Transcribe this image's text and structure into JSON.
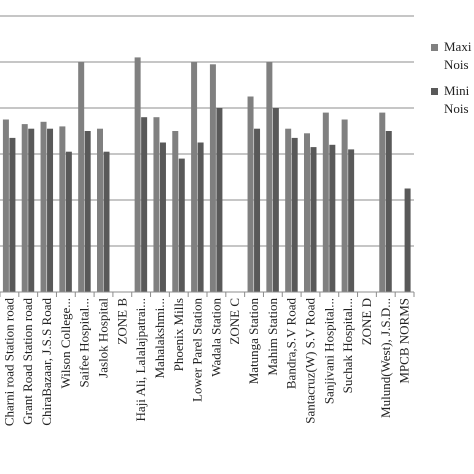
{
  "chart_data": {
    "type": "bar",
    "categories": [
      "Charni road Station road",
      "Grant Road Station road",
      "ChiraBazaar, J.S.S Road",
      "Wilson College...",
      "Saifee Hospital...",
      "Jaslok Hospital",
      "ZONE B",
      "Haji Ali, Lalalajpatrai...",
      "Mahalakshmi...",
      "Phoenix Mills",
      "Lower Parel Station",
      "Wadala Station",
      "ZONE C",
      "Matunga Station",
      "Mahim Station",
      "Bandra,S.V Road",
      "Santacruz(W) S.V Road",
      "Sanjivani Hospital...",
      "Suchak Hospital...",
      "ZONE D",
      "Mulund(West), J.S.D...",
      "MPCB NORMS"
    ],
    "series": [
      {
        "name": "Maximum Noise",
        "legend_lines": [
          "Maxi",
          "Nois"
        ],
        "color": "#808080",
        "values": [
          75,
          73,
          74,
          72,
          100,
          71,
          null,
          102,
          76,
          70,
          100,
          99,
          null,
          85,
          100,
          71,
          69,
          78,
          75,
          null,
          78,
          null
        ]
      },
      {
        "name": "Minimum Noise",
        "legend_lines": [
          "Mini",
          "Nois"
        ],
        "color": "#595959",
        "values": [
          67,
          71,
          71,
          61,
          70,
          61,
          null,
          76,
          65,
          58,
          65,
          80,
          null,
          71,
          80,
          67,
          63,
          64,
          62,
          null,
          70,
          45
        ]
      }
    ],
    "ylim": [
      0,
      120
    ],
    "grid": true,
    "legend": "right"
  }
}
